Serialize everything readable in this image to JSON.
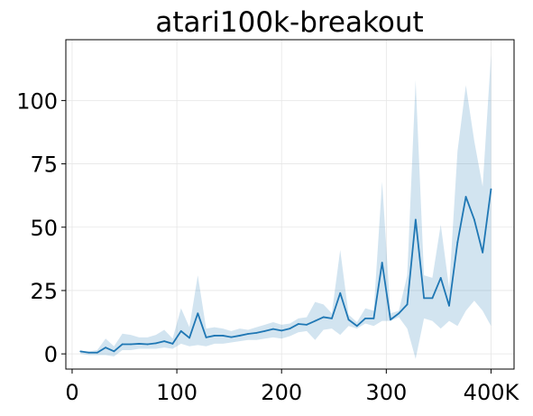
{
  "chart_data": {
    "type": "line",
    "title": "atari100k-breakout",
    "xlabel": "",
    "ylabel": "",
    "xlim": [
      -6,
      422
    ],
    "ylim": [
      -6,
      124
    ],
    "grid": true,
    "x_ticks": [
      {
        "value": 0,
        "label": "0"
      },
      {
        "value": 100,
        "label": "100"
      },
      {
        "value": 200,
        "label": "200"
      },
      {
        "value": 300,
        "label": "300"
      },
      {
        "value": 400,
        "label": "400K"
      }
    ],
    "y_ticks": [
      {
        "value": 0,
        "label": "0"
      },
      {
        "value": 25,
        "label": "25"
      },
      {
        "value": 50,
        "label": "50"
      },
      {
        "value": 75,
        "label": "75"
      },
      {
        "value": 100,
        "label": "100"
      }
    ],
    "series": [
      {
        "color": "#1f77b4",
        "band_color": "#1f77b4",
        "x": [
          8,
          16,
          24,
          32,
          40,
          48,
          56,
          64,
          72,
          80,
          88,
          96,
          104,
          112,
          120,
          128,
          136,
          144,
          152,
          160,
          168,
          176,
          184,
          192,
          200,
          208,
          216,
          224,
          232,
          240,
          248,
          256,
          264,
          272,
          280,
          288,
          296,
          304,
          312,
          320,
          328,
          336,
          344,
          352,
          360,
          368,
          376,
          384,
          392,
          400
        ],
        "values": [
          1,
          0.5,
          0.5,
          2.5,
          1,
          3.8,
          3.8,
          4,
          3.8,
          4.2,
          5,
          4,
          9,
          6.3,
          16,
          6.5,
          7.2,
          7.2,
          6.6,
          7.2,
          7.9,
          8.3,
          9,
          9.8,
          9.2,
          10,
          11.8,
          11.5,
          13,
          14.5,
          14,
          24,
          13.5,
          11,
          14,
          14,
          36,
          13.5,
          16,
          19.5,
          53,
          22,
          22,
          30,
          19,
          44,
          62,
          53,
          40,
          65
        ],
        "lower": [
          0,
          -0.5,
          -0.5,
          -0.5,
          -1,
          1.5,
          1.5,
          2,
          2,
          2,
          2.5,
          2,
          4,
          3,
          3.5,
          3,
          4,
          4,
          4.5,
          5,
          5.5,
          5.5,
          6,
          6.5,
          6,
          7,
          8.5,
          9,
          5.5,
          9.5,
          10,
          7.5,
          11,
          10,
          12,
          11,
          13,
          13,
          14.5,
          10,
          -2,
          14,
          13,
          10,
          13,
          11,
          17,
          21,
          17,
          11
        ],
        "upper": [
          1,
          1,
          1.5,
          6,
          3,
          8,
          7.5,
          6.5,
          6.5,
          7.5,
          9.5,
          6,
          18,
          10.5,
          31,
          10,
          10.5,
          10,
          9,
          10,
          9.5,
          10.5,
          11.5,
          12.5,
          11.5,
          12,
          14,
          14.5,
          20.5,
          19.5,
          16,
          41,
          15.5,
          12.5,
          18,
          17,
          68,
          16,
          17,
          31,
          108,
          31,
          30,
          51,
          26,
          80,
          106,
          84,
          66,
          118
        ]
      }
    ]
  }
}
